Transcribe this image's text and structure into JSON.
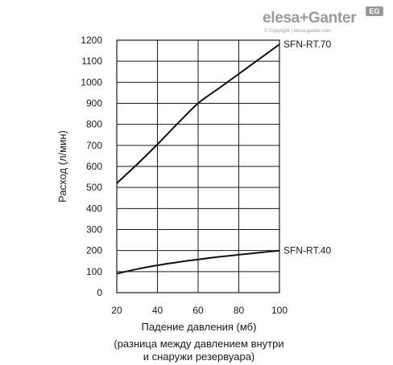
{
  "brand": {
    "logo_text": "elesa+Ganter",
    "badge": "EG",
    "copyright": "© Copyright | elesa-ganter.com"
  },
  "chart_data": {
    "type": "line",
    "xlabel": "Падение давления (мб)",
    "ylabel": "Расход (л/мин)",
    "xlim": [
      20,
      100
    ],
    "ylim": [
      0,
      1200
    ],
    "x_ticks": [
      20,
      40,
      60,
      80,
      100
    ],
    "y_ticks": [
      0,
      100,
      200,
      300,
      400,
      500,
      600,
      700,
      800,
      900,
      1000,
      1100,
      1200
    ],
    "grid": true,
    "series": [
      {
        "name": "SFN-RT.70",
        "x": [
          20,
          30,
          40,
          50,
          60,
          70,
          80,
          90,
          100
        ],
        "y": [
          520,
          610,
          705,
          805,
          900,
          970,
          1040,
          1110,
          1180
        ]
      },
      {
        "name": "SFN-RT.40",
        "x": [
          20,
          30,
          40,
          50,
          60,
          70,
          80,
          90,
          100
        ],
        "y": [
          90,
          112,
          130,
          145,
          158,
          170,
          180,
          190,
          200
        ]
      }
    ],
    "note_lines": [
      "(разница между давлением внутри",
      "и снаружи резервуара)"
    ]
  }
}
